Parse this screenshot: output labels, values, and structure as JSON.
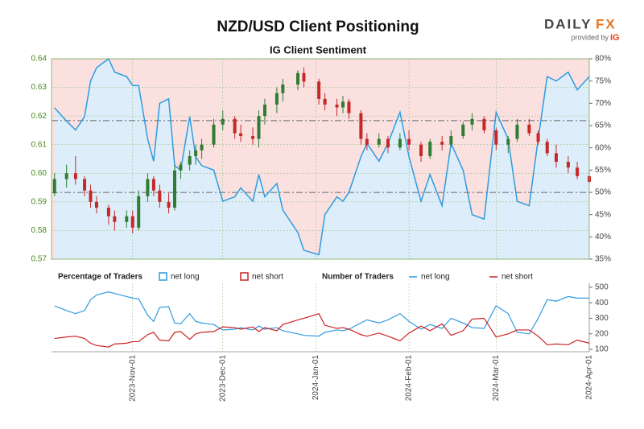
{
  "chart_data": {
    "type": "candlestick",
    "title": "NZD/USD Client Positioning",
    "subtitle": "IG Client Sentiment",
    "brand_name": "DAILY",
    "brand_fx": "FX",
    "brand_provided": "provided by",
    "brand_ig": "IG",
    "up_color": "#2e7d32",
    "down_color": "#c62828",
    "dates": [
      "2023-10-06",
      "2023-10-10",
      "2023-10-13",
      "2023-10-16",
      "2023-10-18",
      "2023-10-20",
      "2023-10-24",
      "2023-10-26",
      "2023-10-30",
      "2023-11-01",
      "2023-11-03",
      "2023-11-06",
      "2023-11-08",
      "2023-11-10",
      "2023-11-13",
      "2023-11-15",
      "2023-11-17",
      "2023-11-20",
      "2023-11-22",
      "2023-11-24",
      "2023-11-28",
      "2023-12-01",
      "2023-12-05",
      "2023-12-07",
      "2023-12-11",
      "2023-12-13",
      "2023-12-15",
      "2023-12-19",
      "2023-12-21",
      "2023-12-26",
      "2023-12-28",
      "2024-01-02",
      "2024-01-04",
      "2024-01-08",
      "2024-01-10",
      "2024-01-12",
      "2024-01-16",
      "2024-01-18",
      "2024-01-22",
      "2024-01-25",
      "2024-01-29",
      "2024-02-01",
      "2024-02-05",
      "2024-02-08",
      "2024-02-12",
      "2024-02-15",
      "2024-02-19",
      "2024-02-22",
      "2024-02-26",
      "2024-03-01",
      "2024-03-05",
      "2024-03-08",
      "2024-03-12",
      "2024-03-15",
      "2024-03-18",
      "2024-03-21",
      "2024-03-25",
      "2024-03-28",
      "2024-04-01"
    ],
    "open": [
      0.593,
      0.598,
      0.6,
      0.598,
      0.594,
      0.59,
      0.588,
      0.585,
      0.583,
      0.585,
      0.581,
      0.592,
      0.598,
      0.594,
      0.59,
      0.588,
      0.601,
      0.603,
      0.606,
      0.608,
      0.61,
      0.617,
      0.619,
      0.614,
      0.613,
      0.612,
      0.62,
      0.624,
      0.628,
      0.631,
      0.635,
      0.632,
      0.626,
      0.624,
      0.623,
      0.625,
      0.621,
      0.612,
      0.61,
      0.612,
      0.609,
      0.612,
      0.61,
      0.606,
      0.611,
      0.61,
      0.613,
      0.617,
      0.619,
      0.615,
      0.61,
      0.612,
      0.617,
      0.614,
      0.611,
      0.607,
      0.604,
      0.602,
      0.599
    ],
    "high": [
      0.6,
      0.603,
      0.606,
      0.599,
      0.596,
      0.592,
      0.589,
      0.587,
      0.587,
      0.587,
      0.594,
      0.6,
      0.599,
      0.596,
      0.593,
      0.603,
      0.604,
      0.608,
      0.61,
      0.612,
      0.619,
      0.622,
      0.62,
      0.617,
      0.616,
      0.622,
      0.626,
      0.63,
      0.633,
      0.636,
      0.637,
      0.633,
      0.628,
      0.626,
      0.627,
      0.626,
      0.622,
      0.614,
      0.614,
      0.613,
      0.614,
      0.615,
      0.611,
      0.612,
      0.613,
      0.615,
      0.618,
      0.621,
      0.62,
      0.616,
      0.613,
      0.619,
      0.619,
      0.615,
      0.612,
      0.61,
      0.606,
      0.604,
      0.601
    ],
    "low": [
      0.592,
      0.595,
      0.596,
      0.592,
      0.588,
      0.586,
      0.582,
      0.58,
      0.581,
      0.579,
      0.58,
      0.59,
      0.592,
      0.588,
      0.586,
      0.587,
      0.598,
      0.601,
      0.603,
      0.605,
      0.609,
      0.615,
      0.612,
      0.611,
      0.61,
      0.609,
      0.617,
      0.621,
      0.625,
      0.629,
      0.63,
      0.624,
      0.622,
      0.62,
      0.621,
      0.619,
      0.61,
      0.608,
      0.609,
      0.607,
      0.608,
      0.608,
      0.604,
      0.605,
      0.608,
      0.609,
      0.612,
      0.615,
      0.614,
      0.608,
      0.607,
      0.611,
      0.613,
      0.61,
      0.606,
      0.602,
      0.6,
      0.598,
      0.596
    ],
    "close": [
      0.598,
      0.6,
      0.598,
      0.594,
      0.59,
      0.588,
      0.585,
      0.583,
      0.585,
      0.581,
      0.592,
      0.598,
      0.594,
      0.59,
      0.588,
      0.601,
      0.603,
      0.606,
      0.608,
      0.61,
      0.617,
      0.619,
      0.614,
      0.613,
      0.612,
      0.62,
      0.624,
      0.628,
      0.631,
      0.635,
      0.632,
      0.626,
      0.624,
      0.623,
      0.625,
      0.621,
      0.612,
      0.61,
      0.612,
      0.609,
      0.612,
      0.61,
      0.606,
      0.611,
      0.61,
      0.613,
      0.617,
      0.619,
      0.615,
      0.61,
      0.612,
      0.617,
      0.614,
      0.611,
      0.607,
      0.604,
      0.602,
      0.599,
      0.597
    ],
    "xlim": [
      "2023-10-05",
      "2024-04-01"
    ],
    "xticks": [
      {
        "value": "2023-11-01",
        "label": "2023-Nov-01"
      },
      {
        "value": "2023-12-01",
        "label": "2023-Dec-01"
      },
      {
        "value": "2024-01-01",
        "label": "2024-Jan-01"
      },
      {
        "value": "2024-02-01",
        "label": "2024-Feb-01"
      },
      {
        "value": "2024-03-01",
        "label": "2024-Mar-01"
      },
      {
        "value": "2024-04-01",
        "label": "2024-Apr-01"
      }
    ],
    "ylim": [
      0.57,
      0.64
    ],
    "yticks": [
      0.57,
      0.58,
      0.59,
      {
        "value": 0.6,
        "label": "0.60"
      },
      0.61,
      0.62,
      0.63,
      0.64
    ],
    "reference_levels": [
      0.6184,
      0.5933
    ],
    "y2lim": [
      35,
      80
    ],
    "y2ticks": [
      {
        "value": 35,
        "label": "35%"
      },
      {
        "value": 40,
        "label": "40%"
      },
      {
        "value": 45,
        "label": "45%"
      },
      {
        "value": 50,
        "label": "50%"
      },
      {
        "value": 55,
        "label": "55%"
      },
      {
        "value": 60,
        "label": "60%"
      },
      {
        "value": 65,
        "label": "65%"
      },
      {
        "value": 70,
        "label": "70%"
      },
      {
        "value": 75,
        "label": "75%"
      },
      {
        "value": 80,
        "label": "80%"
      }
    ],
    "sentiment": {
      "title": "Percentage of Traders",
      "net_long_label": "net long",
      "net_short_label": "net short",
      "net_long_color": "#2f9be0",
      "net_short_color": "#cc2222",
      "values": [
        69,
        66,
        64,
        67,
        75,
        78,
        80,
        77,
        76,
        74,
        74,
        62,
        57,
        70,
        71,
        56,
        55,
        67,
        58,
        56,
        55,
        48,
        49,
        51,
        48,
        54,
        49,
        52,
        46,
        41,
        37,
        36,
        45,
        49,
        48,
        50,
        58,
        61,
        57,
        61,
        68,
        58,
        48,
        54,
        47,
        61,
        55,
        45,
        44,
        68,
        62,
        48,
        47,
        62,
        76,
        75,
        77,
        73,
        76
      ]
    },
    "traders": {
      "title": "Number of Traders",
      "ylim": [
        85,
        525
      ],
      "yticks": [
        100,
        200,
        300,
        400,
        500
      ],
      "series": [
        {
          "name": "net long",
          "color": "#2f9be0",
          "values": [
            380,
            350,
            330,
            350,
            420,
            450,
            470,
            460,
            440,
            430,
            425,
            320,
            280,
            370,
            375,
            270,
            265,
            330,
            280,
            270,
            260,
            225,
            230,
            240,
            225,
            250,
            230,
            240,
            220,
            200,
            190,
            185,
            210,
            225,
            220,
            230,
            270,
            290,
            270,
            290,
            330,
            280,
            230,
            260,
            235,
            300,
            270,
            240,
            235,
            380,
            330,
            210,
            200,
            300,
            420,
            410,
            440,
            430,
            430
          ]
        },
        {
          "name": "net short",
          "color": "#cc2222",
          "values": [
            170,
            180,
            185,
            170,
            140,
            125,
            115,
            135,
            140,
            150,
            150,
            195,
            210,
            160,
            155,
            210,
            215,
            165,
            200,
            210,
            215,
            245,
            240,
            230,
            245,
            215,
            240,
            220,
            260,
            290,
            300,
            330,
            255,
            235,
            240,
            230,
            195,
            185,
            205,
            185,
            155,
            205,
            250,
            220,
            265,
            190,
            220,
            295,
            300,
            180,
            200,
            225,
            225,
            185,
            130,
            135,
            130,
            160,
            140
          ]
        }
      ]
    }
  }
}
